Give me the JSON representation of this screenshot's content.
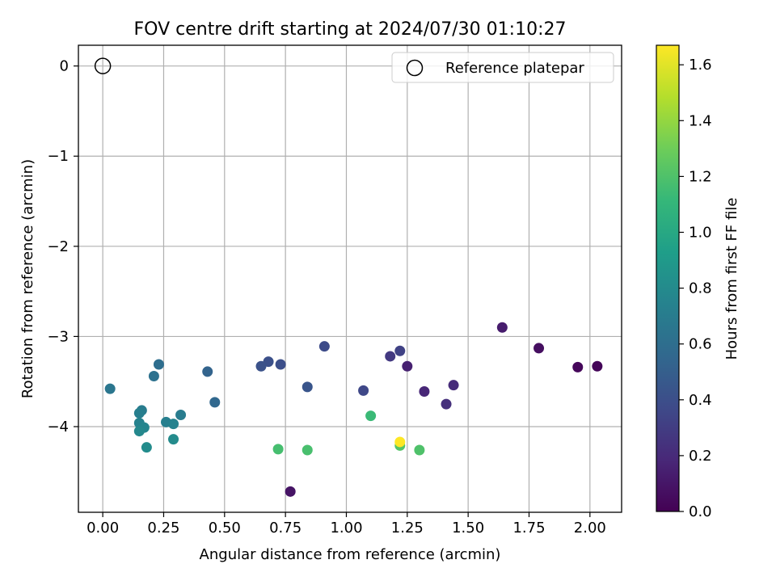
{
  "chart_data": {
    "type": "scatter",
    "title": "FOV centre drift starting at 2024/07/30 01:10:27",
    "xlabel": "Angular distance from reference (arcmin)",
    "ylabel": "Rotation from reference (arcmin)",
    "xlim": [
      -0.1,
      2.13
    ],
    "ylim": [
      -4.95,
      0.23
    ],
    "x_ticks": [
      0.0,
      0.25,
      0.5,
      0.75,
      1.0,
      1.25,
      1.5,
      1.75,
      2.0
    ],
    "x_tick_labels": [
      "0.00",
      "0.25",
      "0.50",
      "0.75",
      "1.00",
      "1.25",
      "1.50",
      "1.75",
      "2.00"
    ],
    "y_ticks": [
      0,
      -1,
      -2,
      -3,
      -4
    ],
    "y_tick_labels": [
      "0",
      "−1",
      "−2",
      "−3",
      "−4"
    ],
    "grid": true,
    "legend": {
      "placement": "top-right",
      "entries": [
        {
          "label": "Reference platepar",
          "marker": "open-circle"
        }
      ]
    },
    "reference_point": {
      "x": 0.0,
      "y": 0.0,
      "label": "Reference platepar"
    },
    "colormap": "viridis",
    "colorbar": {
      "label": "Hours from first FF file",
      "range": [
        0.0,
        1.67
      ],
      "ticks": [
        0.0,
        0.2,
        0.4,
        0.6,
        0.8,
        1.0,
        1.2,
        1.4,
        1.6
      ],
      "tick_labels": [
        "0.0",
        "0.2",
        "0.4",
        "0.6",
        "0.8",
        "1.0",
        "1.2",
        "1.4",
        "1.6"
      ]
    },
    "points": [
      {
        "x": 2.03,
        "y": -3.33,
        "c": 0.02
      },
      {
        "x": 1.95,
        "y": -3.34,
        "c": 0.03
      },
      {
        "x": 1.79,
        "y": -3.13,
        "c": 0.06
      },
      {
        "x": 0.77,
        "y": -4.72,
        "c": 0.09
      },
      {
        "x": 1.64,
        "y": -2.9,
        "c": 0.13
      },
      {
        "x": 1.25,
        "y": -3.33,
        "c": 0.15
      },
      {
        "x": 1.32,
        "y": -3.61,
        "c": 0.18
      },
      {
        "x": 1.44,
        "y": -3.54,
        "c": 0.21
      },
      {
        "x": 1.41,
        "y": -3.75,
        "c": 0.23
      },
      {
        "x": 1.18,
        "y": -3.22,
        "c": 0.28
      },
      {
        "x": 1.22,
        "y": -3.16,
        "c": 0.33
      },
      {
        "x": 1.07,
        "y": -3.6,
        "c": 0.36
      },
      {
        "x": 0.91,
        "y": -3.11,
        "c": 0.38
      },
      {
        "x": 0.73,
        "y": -3.31,
        "c": 0.4
      },
      {
        "x": 0.68,
        "y": -3.28,
        "c": 0.41
      },
      {
        "x": 0.65,
        "y": -3.33,
        "c": 0.42
      },
      {
        "x": 0.84,
        "y": -3.56,
        "c": 0.44
      },
      {
        "x": 0.43,
        "y": -3.39,
        "c": 0.53
      },
      {
        "x": 0.46,
        "y": -3.73,
        "c": 0.56
      },
      {
        "x": 0.23,
        "y": -3.31,
        "c": 0.6
      },
      {
        "x": 0.21,
        "y": -3.44,
        "c": 0.62
      },
      {
        "x": 0.03,
        "y": -3.58,
        "c": 0.66
      },
      {
        "x": 0.32,
        "y": -3.87,
        "c": 0.7
      },
      {
        "x": 0.16,
        "y": -3.82,
        "c": 0.7
      },
      {
        "x": 0.15,
        "y": -3.85,
        "c": 0.72
      },
      {
        "x": 0.26,
        "y": -3.95,
        "c": 0.72
      },
      {
        "x": 0.29,
        "y": -3.97,
        "c": 0.74
      },
      {
        "x": 0.15,
        "y": -3.96,
        "c": 0.74
      },
      {
        "x": 0.17,
        "y": -4.01,
        "c": 0.76
      },
      {
        "x": 0.15,
        "y": -4.05,
        "c": 0.78
      },
      {
        "x": 0.29,
        "y": -4.14,
        "c": 0.8
      },
      {
        "x": 0.18,
        "y": -4.23,
        "c": 0.81
      },
      {
        "x": 1.1,
        "y": -3.88,
        "c": 1.13
      },
      {
        "x": 0.72,
        "y": -4.25,
        "c": 1.17
      },
      {
        "x": 0.84,
        "y": -4.26,
        "c": 1.18
      },
      {
        "x": 1.3,
        "y": -4.26,
        "c": 1.2
      },
      {
        "x": 1.22,
        "y": -4.21,
        "c": 1.22
      },
      {
        "x": 1.22,
        "y": -4.17,
        "c": 1.67
      }
    ]
  }
}
